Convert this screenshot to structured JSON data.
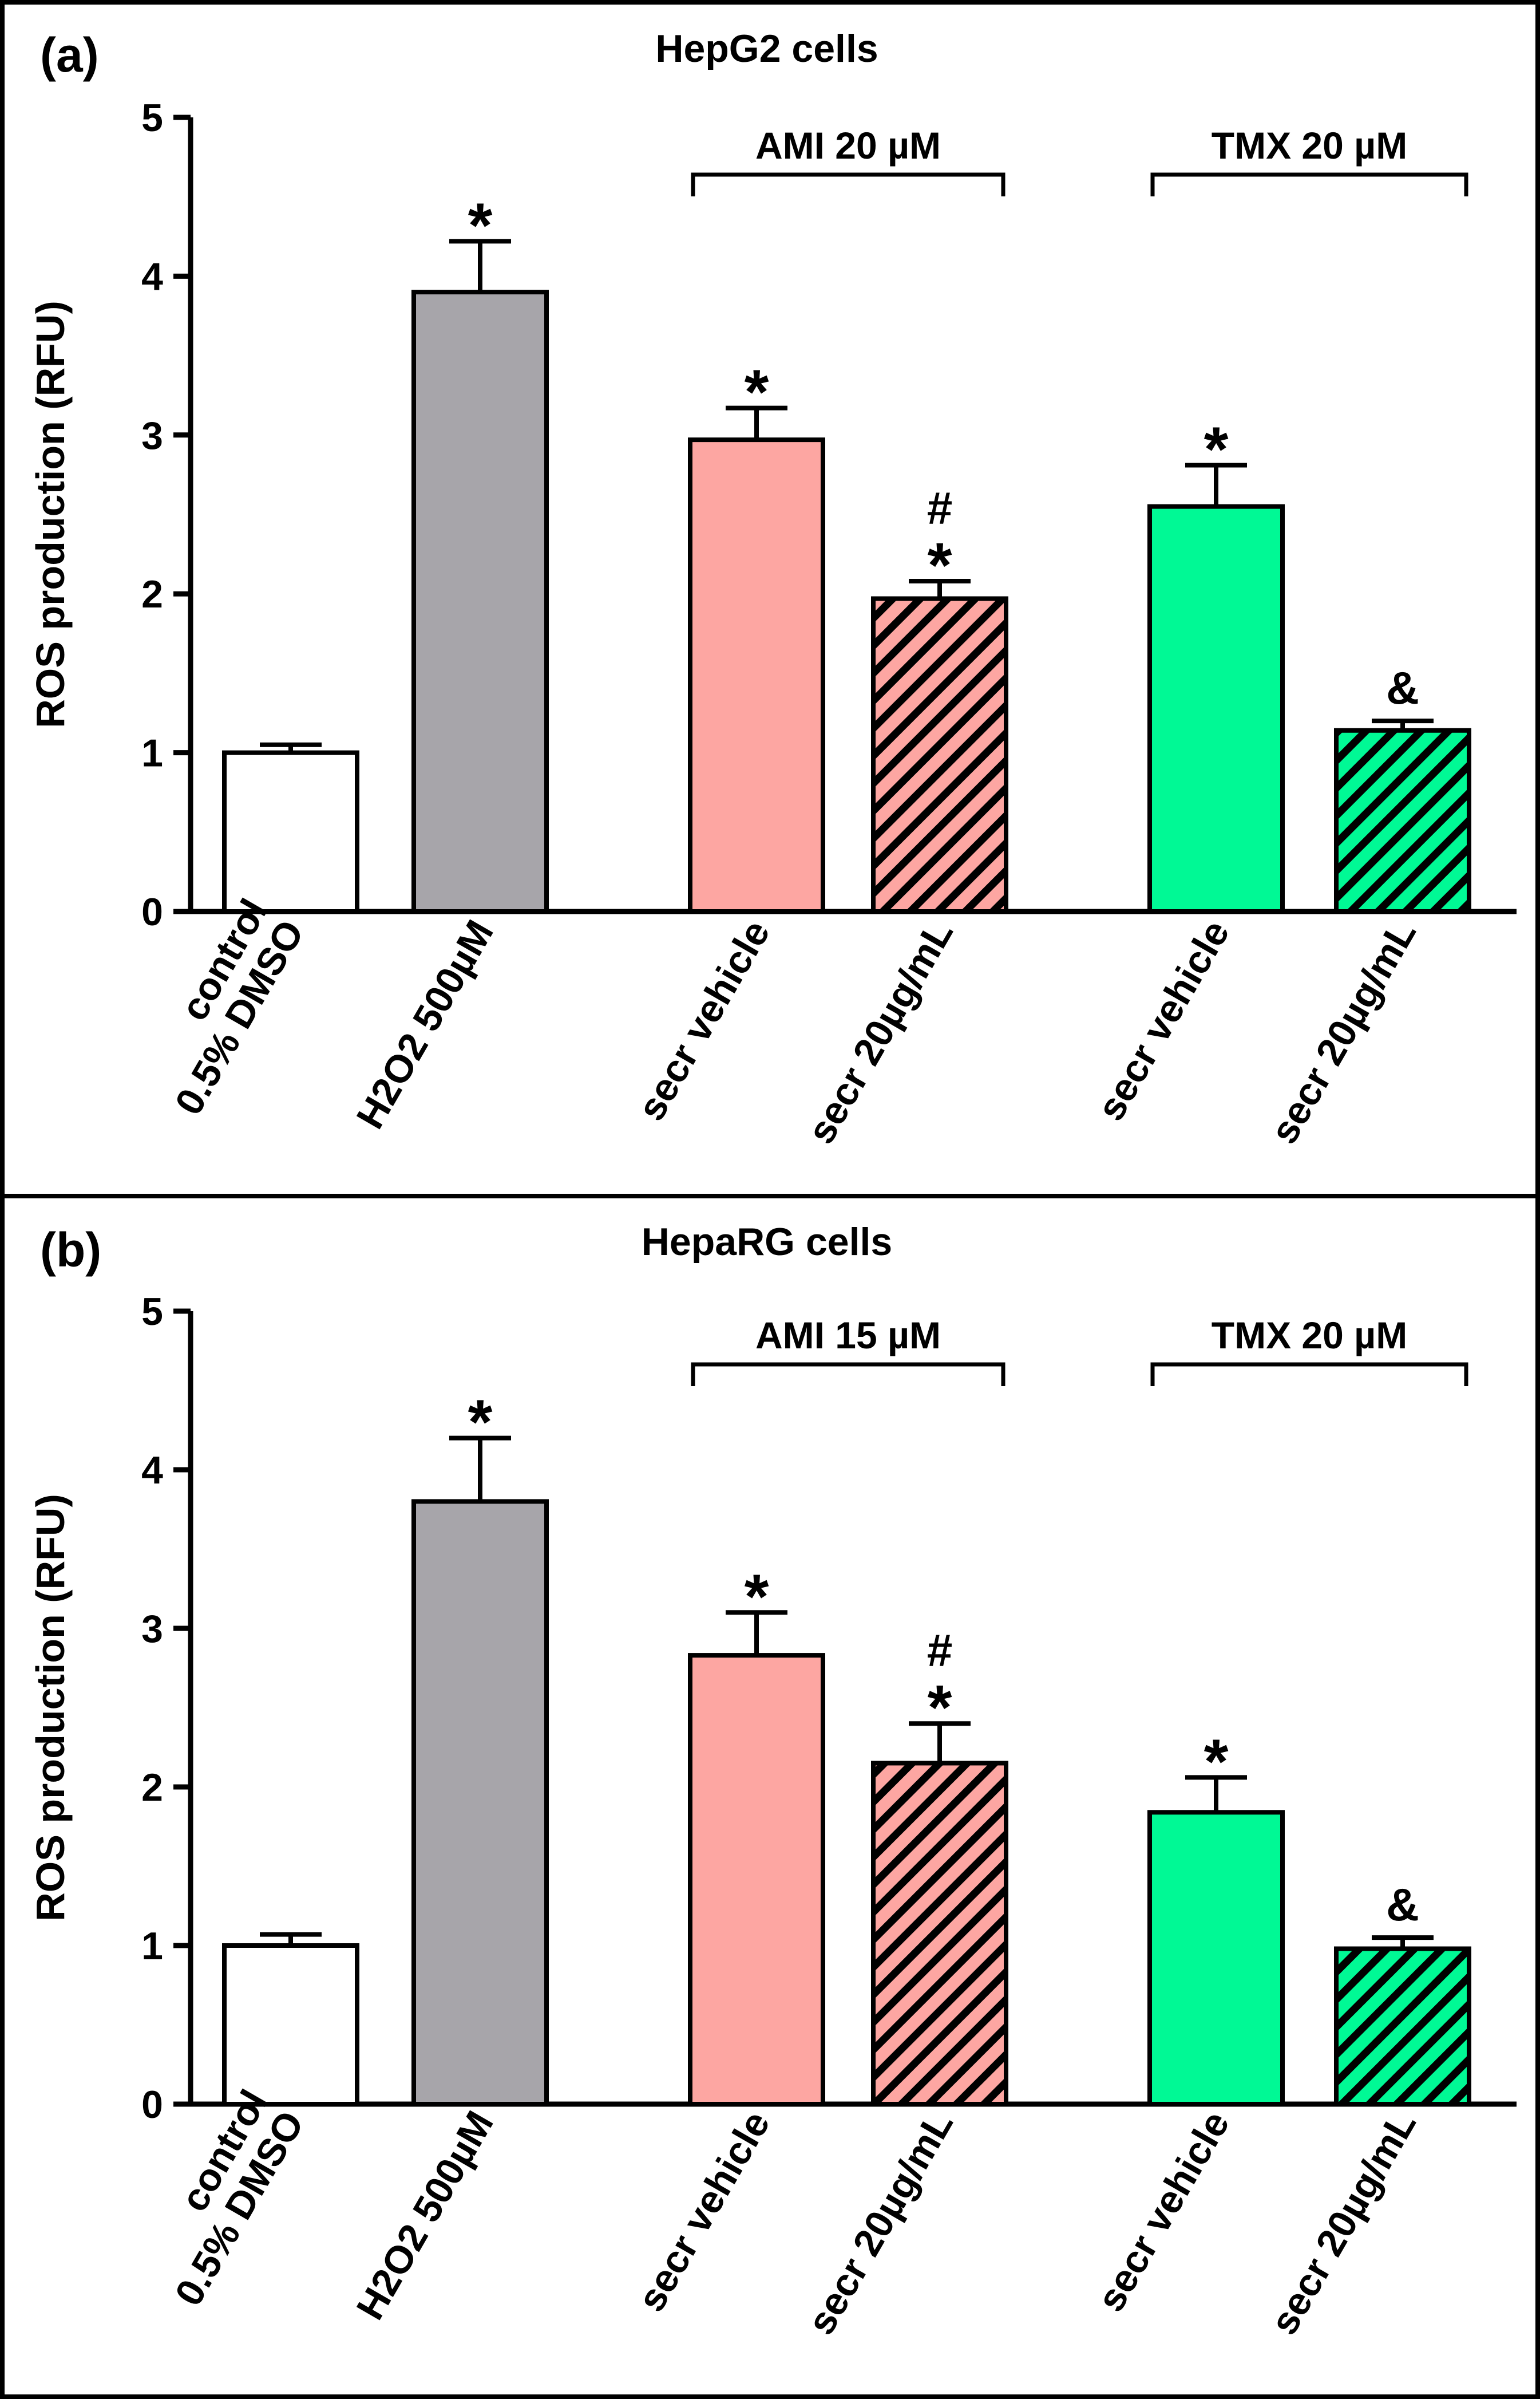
{
  "colors": {
    "control": "#ffffff",
    "h2o2": "#a7a5aa",
    "ami": "#fda6a2",
    "tmx": "#00f995",
    "outline": "#000000"
  },
  "chart_data": [
    {
      "type": "bar",
      "panel_label": "(a)",
      "title": "HepG2 cells",
      "xlabel": "",
      "ylabel": "ROS production (RFU)",
      "ylim": [
        0,
        5
      ],
      "yticks": [
        "0",
        "1",
        "2",
        "3",
        "4",
        "5"
      ],
      "categories": [
        "control\n0.5% DMSO",
        "H2O2 500µM",
        "secr vehicle",
        "secr 20µg/mL",
        "secr vehicle",
        "secr 20µg/mL"
      ],
      "values": [
        1.0,
        3.9,
        2.97,
        1.97,
        2.55,
        1.14
      ],
      "errors": [
        0.05,
        0.32,
        0.2,
        0.11,
        0.26,
        0.06
      ],
      "fill": [
        "control",
        "h2o2",
        "ami",
        "ami",
        "tmx",
        "tmx"
      ],
      "hatched": [
        false,
        false,
        false,
        true,
        false,
        true
      ],
      "annotations": [
        "",
        "*",
        "*",
        "#\n*",
        "*",
        "&"
      ],
      "groups": [
        {
          "label": "AMI 20 µM",
          "from": 2,
          "to": 3
        },
        {
          "label": "TMX 20 µM",
          "from": 4,
          "to": 5
        }
      ]
    },
    {
      "type": "bar",
      "panel_label": "(b)",
      "title": "HepaRG cells",
      "xlabel": "",
      "ylabel": "ROS production (RFU)",
      "ylim": [
        0,
        5
      ],
      "yticks": [
        "0",
        "1",
        "2",
        "3",
        "4",
        "5"
      ],
      "categories": [
        "control\n0.5% DMSO",
        "H2O2 500µM",
        "secr vehicle",
        "secr 20µg/mL",
        "secr vehicle",
        "secr 20µg/mL"
      ],
      "values": [
        1.0,
        3.8,
        2.83,
        2.15,
        1.84,
        0.98
      ],
      "errors": [
        0.07,
        0.4,
        0.27,
        0.25,
        0.22,
        0.07
      ],
      "fill": [
        "control",
        "h2o2",
        "ami",
        "ami",
        "tmx",
        "tmx"
      ],
      "hatched": [
        false,
        false,
        false,
        true,
        false,
        true
      ],
      "annotations": [
        "",
        "*",
        "*",
        "#\n*",
        "*",
        "&"
      ],
      "groups": [
        {
          "label": "AMI 15 µM",
          "from": 2,
          "to": 3
        },
        {
          "label": "TMX 20 µM",
          "from": 4,
          "to": 5
        }
      ]
    }
  ]
}
